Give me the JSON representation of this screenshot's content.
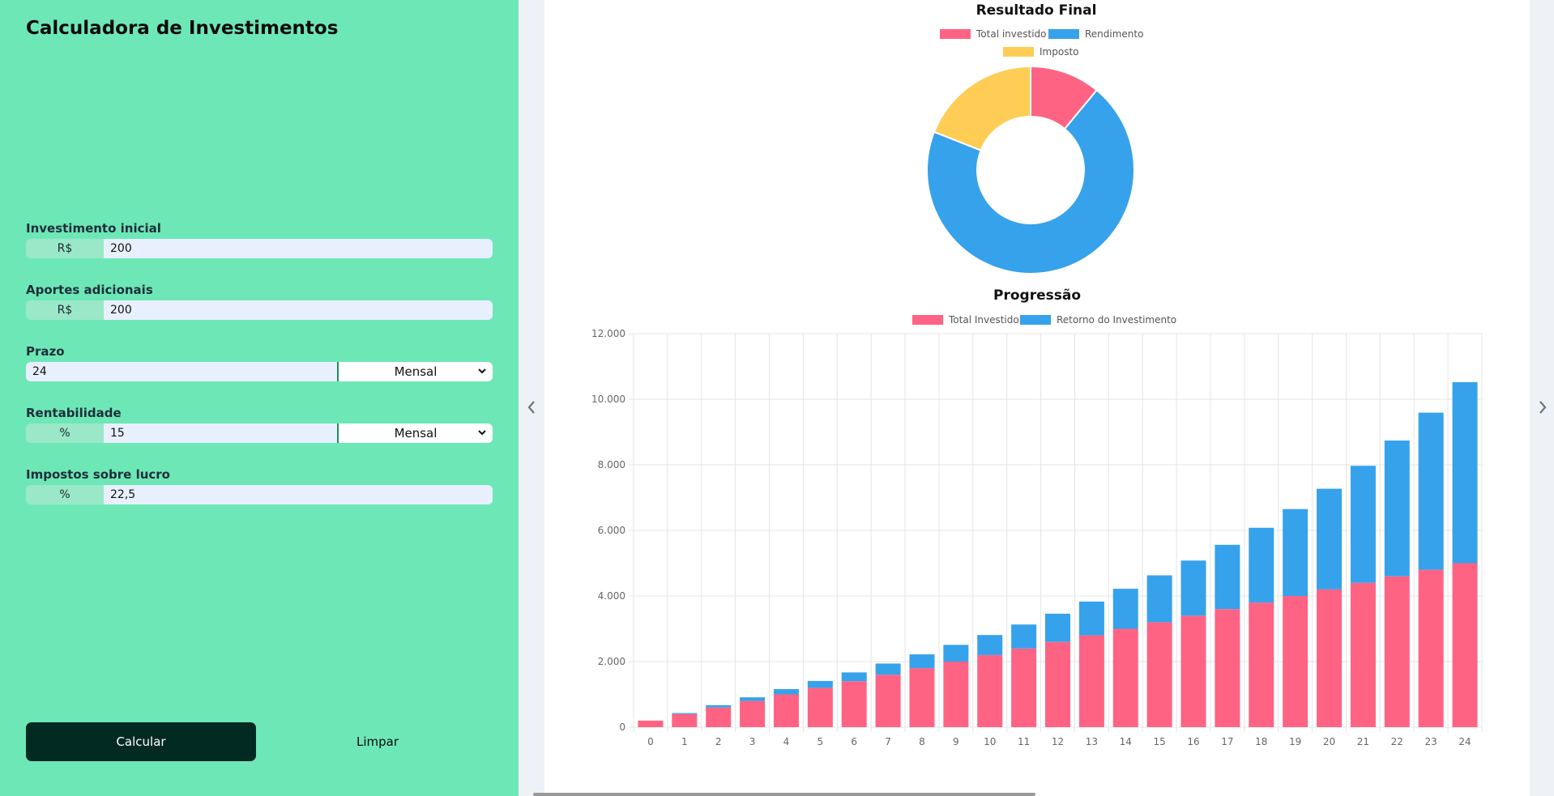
{
  "app": {
    "title": "Calculadora de Investimentos"
  },
  "form": {
    "initial": {
      "label": "Investimento inicial",
      "prefix": "R$",
      "value": "200"
    },
    "monthly": {
      "label": "Aportes adicionais",
      "prefix": "R$",
      "value": "200"
    },
    "term": {
      "label": "Prazo",
      "value": "24",
      "unit": "Mensal"
    },
    "rate": {
      "label": "Rentabilidade",
      "prefix": "%",
      "value": "15",
      "unit": "Mensal"
    },
    "tax": {
      "label": "Impostos sobre lucro",
      "prefix": "%",
      "value": "22,5"
    }
  },
  "buttons": {
    "calc": "Calcular",
    "clear": "Limpar"
  },
  "icons": {
    "prev": "chevron-left-icon",
    "next": "chevron-right-icon",
    "select": "chevron-down-icon"
  },
  "colors": {
    "sidebar": "#6ee7b7",
    "pink": "#ff6384",
    "blue": "#36a2eb",
    "yellow": "#ffcd56",
    "button": "#032a22"
  },
  "chart_data": [
    {
      "type": "pie",
      "title": "Resultado Final",
      "legend": [
        "Total investido",
        "Rendimento",
        "Imposto"
      ],
      "categories": [
        "Total investido",
        "Rendimento",
        "Imposto"
      ],
      "values": [
        11,
        70,
        19
      ],
      "colors": [
        "#ff6384",
        "#36a2eb",
        "#ffcd56"
      ]
    },
    {
      "type": "bar",
      "title": "Progressão",
      "stacked": true,
      "xlabel": "",
      "ylabel": "",
      "ylim": [
        0,
        12000
      ],
      "yticks": [
        "0",
        "2.000",
        "4.000",
        "6.000",
        "8.000",
        "10.000",
        "12.000"
      ],
      "categories": [
        "0",
        "1",
        "2",
        "3",
        "4",
        "5",
        "6",
        "7",
        "8",
        "9",
        "10",
        "11",
        "12",
        "13",
        "14",
        "15",
        "16",
        "17",
        "18",
        "19",
        "20",
        "21",
        "22",
        "23",
        "24"
      ],
      "series": [
        {
          "name": "Total Investido",
          "color": "#ff6384",
          "values": [
            200,
            400,
            600,
            800,
            1000,
            1200,
            1400,
            1600,
            1800,
            2000,
            2200,
            2400,
            2600,
            2800,
            3000,
            3200,
            3400,
            3600,
            3800,
            4000,
            4200,
            4400,
            4600,
            4800,
            5000
          ]
        },
        {
          "name": "Retorno do Investimento",
          "color": "#36a2eb",
          "values": [
            0,
            30,
            70,
            110,
            160,
            210,
            270,
            340,
            420,
            510,
            610,
            730,
            860,
            1030,
            1220,
            1430,
            1680,
            1960,
            2280,
            2650,
            3070,
            3570,
            4140,
            4790,
            5520
          ]
        }
      ]
    }
  ]
}
